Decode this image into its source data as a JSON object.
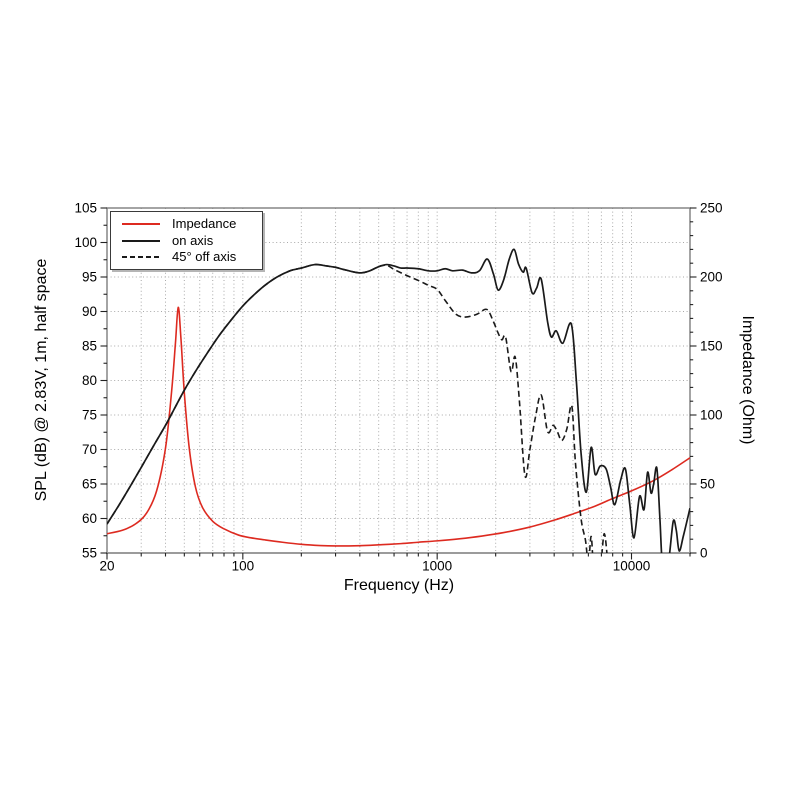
{
  "page": {
    "background": "#ffffff"
  },
  "chart_data": {
    "type": "line",
    "x_scale": "log",
    "grid": true,
    "grid_color": "#a9a9a9",
    "frame_color": "#7d7d7d",
    "tick_color": "#222222",
    "legend_position": "top-left",
    "axes": {
      "x": {
        "label": "Frequency (Hz)",
        "min": 20,
        "max": 20000,
        "major_ticks": [
          20,
          100,
          1000,
          10000
        ],
        "minor_ticks": [
          30,
          40,
          50,
          60,
          70,
          80,
          90,
          200,
          300,
          400,
          500,
          600,
          700,
          800,
          900,
          2000,
          3000,
          4000,
          5000,
          6000,
          7000,
          8000,
          9000,
          20000
        ]
      },
      "y_left": {
        "label": "SPL (dB) @ 2.83V, 1m, half space",
        "min": 55,
        "max": 105,
        "major_step": 5,
        "minor_step": 2.5
      },
      "y_right": {
        "label": "Impedance (Ohm)",
        "min": 0,
        "max": 250,
        "major_step": 50,
        "minor_step": 10
      }
    },
    "series": [
      {
        "key": "impedance",
        "label": "Impedance",
        "color": "#dd2a20",
        "line_style": "solid",
        "y_axis": "right",
        "unit": "Ohm",
        "points": [
          [
            20,
            14
          ],
          [
            24,
            16.5
          ],
          [
            28,
            21
          ],
          [
            32,
            29
          ],
          [
            36,
            45
          ],
          [
            40,
            76
          ],
          [
            43,
            117
          ],
          [
            45,
            152
          ],
          [
            46.5,
            178
          ],
          [
            48,
            156
          ],
          [
            50,
            116
          ],
          [
            53,
            76
          ],
          [
            57,
            48
          ],
          [
            62,
            33
          ],
          [
            70,
            23
          ],
          [
            80,
            17.5
          ],
          [
            95,
            13
          ],
          [
            110,
            11
          ],
          [
            130,
            9.5
          ],
          [
            160,
            7.8
          ],
          [
            200,
            6.3
          ],
          [
            250,
            5.4
          ],
          [
            300,
            5.1
          ],
          [
            400,
            5.3
          ],
          [
            500,
            5.9
          ],
          [
            650,
            6.8
          ],
          [
            800,
            7.8
          ],
          [
            1000,
            8.8
          ],
          [
            1300,
            10.3
          ],
          [
            1700,
            12.3
          ],
          [
            2200,
            14.8
          ],
          [
            3000,
            18.8
          ],
          [
            4000,
            23.8
          ],
          [
            5000,
            28.3
          ],
          [
            6500,
            34
          ],
          [
            8000,
            39.5
          ],
          [
            10000,
            45
          ],
          [
            13000,
            52.5
          ],
          [
            16000,
            60
          ],
          [
            20000,
            69
          ]
        ]
      },
      {
        "key": "on_axis",
        "label": "on axis",
        "color": "#1a1a1a",
        "line_style": "solid",
        "y_axis": "left",
        "unit": "dB",
        "points": [
          [
            20,
            59.2
          ],
          [
            23,
            61.9
          ],
          [
            26,
            64.4
          ],
          [
            30,
            67.4
          ],
          [
            35,
            70.7
          ],
          [
            40,
            73.5
          ],
          [
            45,
            76.2
          ],
          [
            50,
            78.6
          ],
          [
            57,
            81.3
          ],
          [
            65,
            83.8
          ],
          [
            75,
            86.4
          ],
          [
            85,
            88.4
          ],
          [
            100,
            90.8
          ],
          [
            115,
            92.5
          ],
          [
            130,
            93.8
          ],
          [
            150,
            95
          ],
          [
            175,
            95.9
          ],
          [
            200,
            96.3
          ],
          [
            235,
            96.8
          ],
          [
            270,
            96.6
          ],
          [
            300,
            96.4
          ],
          [
            340,
            96
          ],
          [
            400,
            95.6
          ],
          [
            450,
            95.9
          ],
          [
            500,
            96.5
          ],
          [
            550,
            96.8
          ],
          [
            600,
            96.6
          ],
          [
            650,
            96.3
          ],
          [
            700,
            96.3
          ],
          [
            800,
            96.2
          ],
          [
            900,
            95.9
          ],
          [
            1000,
            95.9
          ],
          [
            1100,
            96.2
          ],
          [
            1200,
            95.9
          ],
          [
            1350,
            96
          ],
          [
            1500,
            95.6
          ],
          [
            1650,
            95.9
          ],
          [
            1810,
            97.6
          ],
          [
            1950,
            95.4
          ],
          [
            2060,
            93.1
          ],
          [
            2200,
            94.6
          ],
          [
            2350,
            97.6
          ],
          [
            2490,
            99
          ],
          [
            2620,
            96.9
          ],
          [
            2770,
            95.7
          ],
          [
            2870,
            96.3
          ],
          [
            3080,
            92.7
          ],
          [
            3250,
            93.4
          ],
          [
            3430,
            94.7
          ],
          [
            3700,
            88.5
          ],
          [
            3870,
            86.3
          ],
          [
            4100,
            87.2
          ],
          [
            4430,
            85.4
          ],
          [
            4900,
            88.2
          ],
          [
            5200,
            80
          ],
          [
            5500,
            69.5
          ],
          [
            5850,
            63.8
          ],
          [
            6200,
            70.3
          ],
          [
            6500,
            66.4
          ],
          [
            6900,
            67.6
          ],
          [
            7400,
            67.2
          ],
          [
            7800,
            64.6
          ],
          [
            8200,
            62
          ],
          [
            8800,
            65.6
          ],
          [
            9300,
            67.2
          ],
          [
            9800,
            62
          ],
          [
            10300,
            57.2
          ],
          [
            11000,
            63.2
          ],
          [
            11600,
            61.3
          ],
          [
            12100,
            66.7
          ],
          [
            12600,
            63.7
          ],
          [
            13000,
            65
          ],
          [
            13500,
            67.3
          ],
          [
            14000,
            60
          ],
          [
            14400,
            53.5
          ],
          [
            15000,
            53
          ],
          [
            15600,
            54.3
          ],
          [
            16400,
            59.6
          ],
          [
            17000,
            58.3
          ],
          [
            17600,
            55.3
          ],
          [
            18500,
            57.5
          ],
          [
            20000,
            61.5
          ]
        ]
      },
      {
        "key": "off_axis",
        "label": "45° off axis",
        "color": "#1a1a1a",
        "line_style": "dashed",
        "y_axis": "left",
        "unit": "dB",
        "points": [
          [
            20,
            59.2
          ],
          [
            23,
            61.9
          ],
          [
            26,
            64.4
          ],
          [
            30,
            67.4
          ],
          [
            35,
            70.7
          ],
          [
            40,
            73.5
          ],
          [
            45,
            76.2
          ],
          [
            50,
            78.6
          ],
          [
            57,
            81.3
          ],
          [
            65,
            83.8
          ],
          [
            75,
            86.4
          ],
          [
            85,
            88.4
          ],
          [
            100,
            90.8
          ],
          [
            115,
            92.5
          ],
          [
            130,
            93.8
          ],
          [
            150,
            95
          ],
          [
            175,
            95.9
          ],
          [
            200,
            96.3
          ],
          [
            235,
            96.8
          ],
          [
            270,
            96.6
          ],
          [
            300,
            96.4
          ],
          [
            340,
            96
          ],
          [
            400,
            95.6
          ],
          [
            450,
            95.9
          ],
          [
            500,
            96.5
          ],
          [
            550,
            96.7
          ],
          [
            600,
            96.1
          ],
          [
            700,
            95.2
          ],
          [
            800,
            94.5
          ],
          [
            900,
            93.8
          ],
          [
            1000,
            93.2
          ],
          [
            1100,
            91.6
          ],
          [
            1250,
            89.6
          ],
          [
            1400,
            89.2
          ],
          [
            1600,
            89.6
          ],
          [
            1800,
            90.3
          ],
          [
            1950,
            88.5
          ],
          [
            2050,
            87
          ],
          [
            2150,
            85.9
          ],
          [
            2250,
            86.3
          ],
          [
            2400,
            81.3
          ],
          [
            2520,
            83.4
          ],
          [
            2650,
            77
          ],
          [
            2830,
            66.2
          ],
          [
            3000,
            70
          ],
          [
            3200,
            74.6
          ],
          [
            3430,
            77.9
          ],
          [
            3700,
            72.6
          ],
          [
            3950,
            73.5
          ],
          [
            4150,
            72.6
          ],
          [
            4380,
            71.3
          ],
          [
            4650,
            73
          ],
          [
            4930,
            76.3
          ],
          [
            5150,
            68
          ],
          [
            5500,
            60
          ],
          [
            5800,
            56.8
          ],
          [
            6000,
            53.5
          ],
          [
            6200,
            57.4
          ],
          [
            6400,
            53.2
          ],
          [
            6900,
            53
          ],
          [
            7250,
            57.8
          ],
          [
            7600,
            52.5
          ]
        ]
      }
    ]
  }
}
